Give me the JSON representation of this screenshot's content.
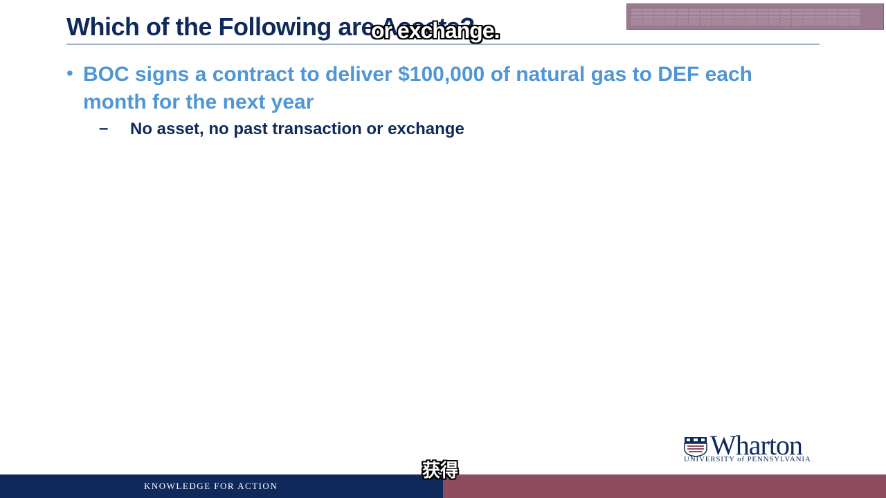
{
  "slide": {
    "title": "Which of the Following are Assets?",
    "bullet": {
      "text": "BOC signs a contract to deliver $100,000 of natural gas to DEF each month for the next year",
      "sub": "No asset, no past transaction or exchange"
    },
    "footer": {
      "tagline": "KNOWLEDGE FOR ACTION"
    },
    "logo": {
      "name": "Wharton",
      "university": "UNIVERSITY of PENNSYLVANIA"
    }
  },
  "captions": {
    "english": "or exchange.",
    "chinese": "获得"
  },
  "colors": {
    "navy": "#0f2a5a",
    "bullet_blue": "#4f96d4",
    "footer_maroon": "#8e4a5e",
    "top_block": "#9b7a90"
  }
}
